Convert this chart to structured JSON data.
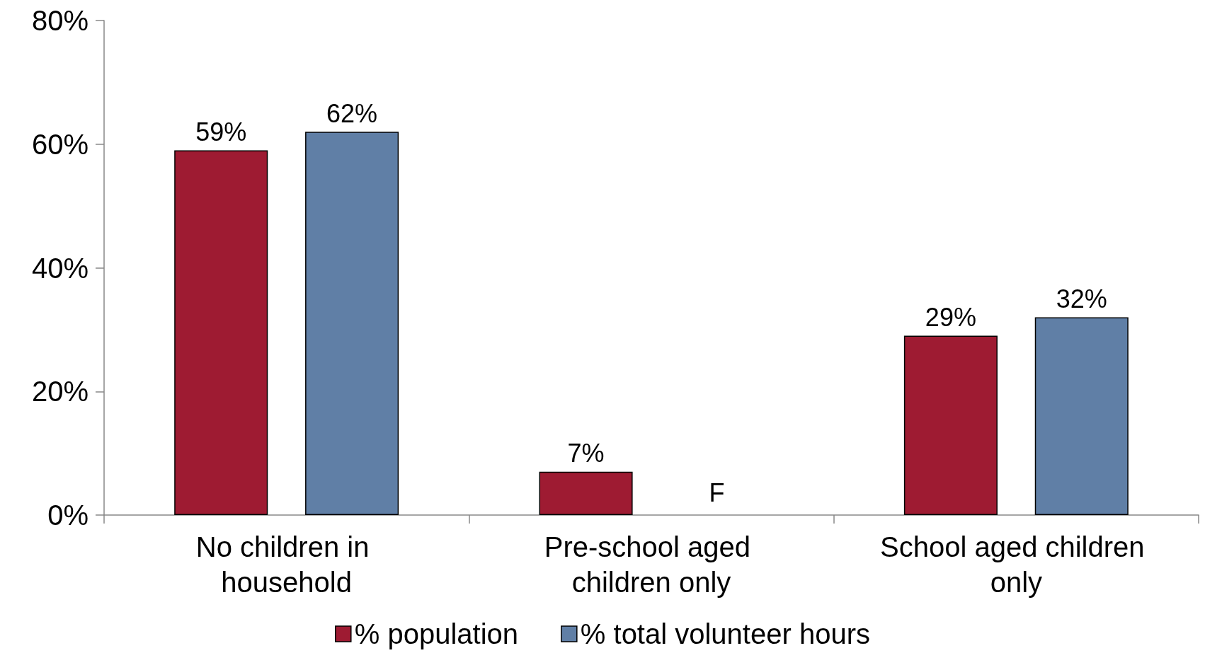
{
  "chart_data": {
    "type": "bar",
    "categories": [
      "No children in household",
      "Pre-school aged children only",
      "School aged children only"
    ],
    "series": [
      {
        "name": "% population",
        "color": "#9e1b32",
        "values": [
          59,
          7,
          29
        ],
        "value_labels": [
          "59%",
          "7%",
          "29%"
        ]
      },
      {
        "name": "% total volunteer hours",
        "color": "#607fa6",
        "values": [
          62,
          null,
          32
        ],
        "value_labels": [
          "62%",
          "F",
          "32%"
        ]
      }
    ],
    "ylim": [
      0,
      80
    ],
    "yticks": [
      {
        "value": 0,
        "label": "0%"
      },
      {
        "value": 20,
        "label": "20%"
      },
      {
        "value": 40,
        "label": "40%"
      },
      {
        "value": 60,
        "label": "60%"
      },
      {
        "value": 80,
        "label": "80%"
      }
    ],
    "grid": false,
    "legend": "bottom"
  }
}
